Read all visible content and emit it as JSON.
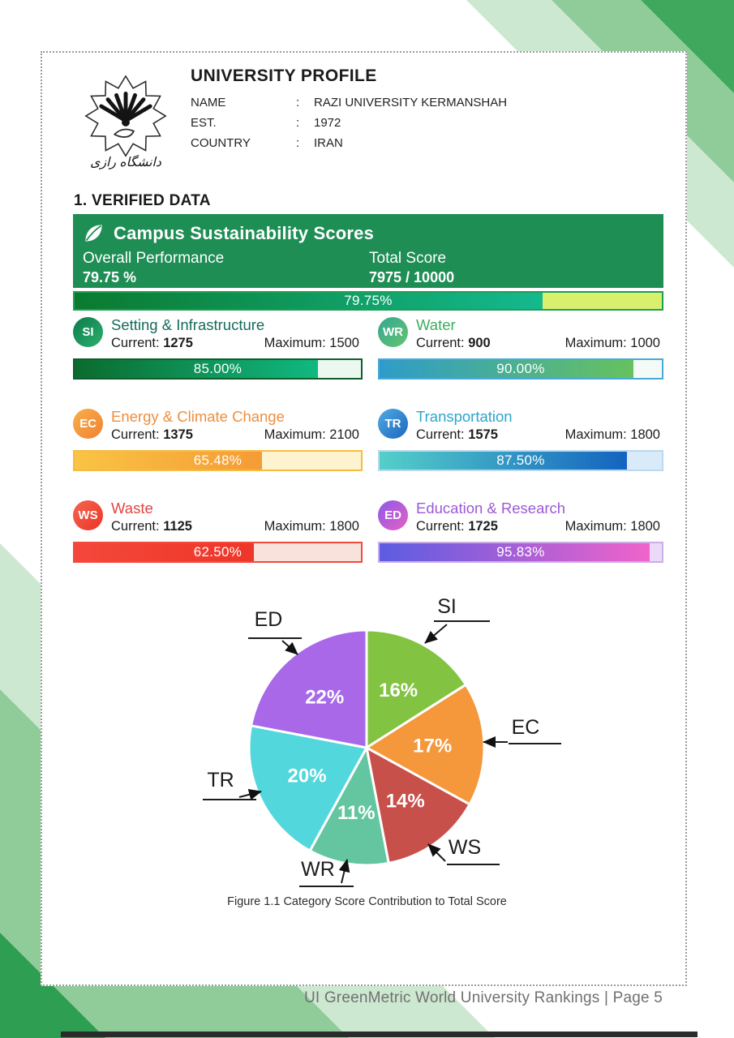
{
  "page": {
    "section_heading": "1. VERIFIED DATA",
    "figure_caption": "Figure 1.1 Category Score Contribution to Total Score",
    "footer_text": "UI GreenMetric World University Rankings | Page 5"
  },
  "profile": {
    "title": "UNIVERSITY PROFILE",
    "separator": ":",
    "logo_caption": "دانشگاه رازی",
    "fields": [
      {
        "label": "NAME",
        "value": "RAZI UNIVERSITY KERMANSHAH"
      },
      {
        "label": "EST.",
        "value": "1972"
      },
      {
        "label": "COUNTRY",
        "value": "IRAN"
      }
    ]
  },
  "banner": {
    "icon": "leaf-icon",
    "title": "Campus Sustainability Scores",
    "overall_label": "Overall Performance",
    "overall_value": "79.75 %",
    "total_label": "Total Score",
    "total_value": "7975 / 10000",
    "bg_color": "#1E8E55"
  },
  "overall_bar": {
    "percent": 79.75,
    "label": "79.75%",
    "fill_from": "#0B7A2F",
    "fill_to": "#14B98E",
    "rest_color": "#D8F06E",
    "border_color": "#1F9E53"
  },
  "categories": [
    {
      "code": "SI",
      "name": "Setting & Infrastructure",
      "current_label": "Current:",
      "current": "1275",
      "maximum_label": "Maximum:",
      "maximum": "1500",
      "percent": 85,
      "percent_label": "85.00%",
      "title_color": "#166B5B",
      "badge_from": "#0B7B4D",
      "badge_to": "#2CB06B",
      "bar_from": "#0C6B2E",
      "bar_to": "#10B981",
      "rest": "#EAF8F0",
      "border": "#0D5E2B"
    },
    {
      "code": "WR",
      "name": "Water",
      "current_label": "Current:",
      "current": "900",
      "maximum_label": "Maximum:",
      "maximum": "1000",
      "percent": 90,
      "percent_label": "90.00%",
      "title_color": "#3BAE5B",
      "badge_from": "#35A693",
      "badge_to": "#64C46F",
      "rest": "#F4FBF6",
      "bar_from": "#2E9CC9",
      "bar_to": "#66C25E",
      "border": "#49A9D8"
    },
    {
      "code": "EC",
      "name": "Energy & Climate Change",
      "current_label": "Current:",
      "current": "1375",
      "maximum_label": "Maximum:",
      "maximum": "2100",
      "percent": 65.48,
      "percent_label": "65.48%",
      "title_color": "#EF8E3E",
      "badge_from": "#F8AE4A",
      "badge_to": "#F08233",
      "bar_from": "#F9C445",
      "bar_to": "#F59B35",
      "rest": "#FDF3CF",
      "border": "#F5BC42"
    },
    {
      "code": "TR",
      "name": "Transportation",
      "current_label": "Current:",
      "current": "1575",
      "maximum_label": "Maximum:",
      "maximum": "1800",
      "percent": 87.5,
      "percent_label": "87.50%",
      "title_color": "#2BA6CB",
      "badge_from": "#51ABE3",
      "badge_to": "#1B67BE",
      "bar_from": "#55CFC9",
      "bar_to": "#1463BF",
      "rest": "#D9EBF9",
      "border": "#BBD8EF"
    },
    {
      "code": "WS",
      "name": "Waste",
      "current_label": "Current:",
      "current": "1125",
      "maximum_label": "Maximum:",
      "maximum": "1800",
      "percent": 62.5,
      "percent_label": "62.50%",
      "title_color": "#E14444",
      "badge_from": "#F4674F",
      "badge_to": "#EC3327",
      "bar_from": "#F4473B",
      "bar_to": "#EE3629",
      "rest": "#FAE2DC",
      "border": "#F14B3C"
    },
    {
      "code": "ED",
      "name": "Education & Research",
      "current_label": "Current:",
      "current": "1725",
      "maximum_label": "Maximum:",
      "maximum": "1800",
      "percent": 95.83,
      "percent_label": "95.83%",
      "title_color": "#9C59D7",
      "badge_from": "#8A5BE8",
      "badge_to": "#E85FC5",
      "bar_from": "#5C5CE2",
      "bar_to": "#F063CB",
      "rest": "#EADAF8",
      "border": "#C9AEE8"
    }
  ],
  "chart_data": {
    "type": "pie",
    "title": "Figure 1.1 Category Score Contribution to Total Score",
    "labels": [
      "SI",
      "EC",
      "WS",
      "WR",
      "TR",
      "ED"
    ],
    "values": [
      16,
      17,
      14,
      11,
      20,
      22
    ],
    "value_labels": [
      "16%",
      "17%",
      "14%",
      "11%",
      "20%",
      "22%"
    ],
    "colors": [
      "#82C341",
      "#F5973B",
      "#C7504A",
      "#63C6A0",
      "#51D7DC",
      "#A868E8"
    ],
    "start": "top",
    "direction": "clockwise",
    "annotation_style": "leader-line labels with arrows"
  }
}
